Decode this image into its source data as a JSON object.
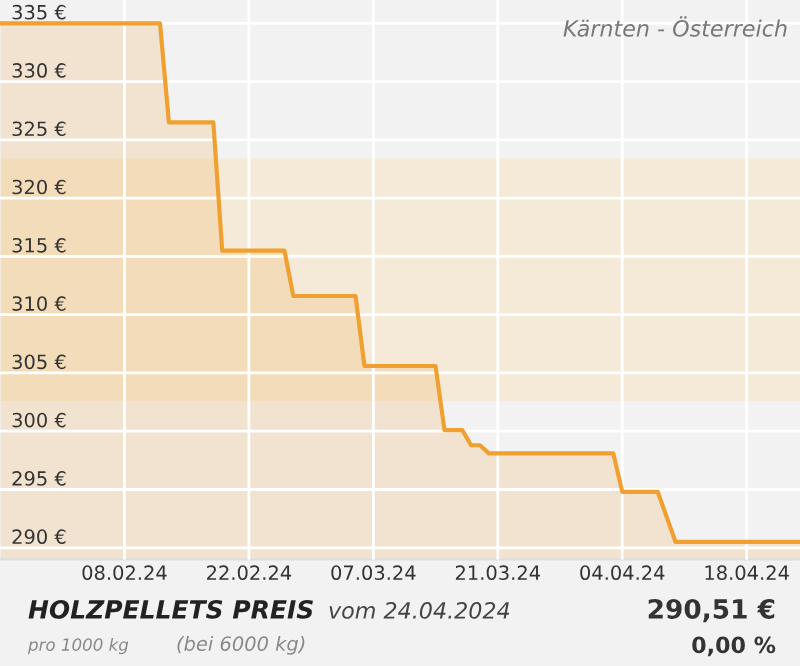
{
  "chart_data": {
    "type": "area",
    "title": "HOLZPELLETS PREIS",
    "subtitle": "vom 24.04.2024",
    "annotations": [
      "Kärnten - Österreich",
      "pro 1000 kg",
      "(bei 6000 kg)",
      "290,51 €",
      "0,00 %"
    ],
    "x": [
      "2024-01-25",
      "2024-02-12",
      "2024-02-13",
      "2024-02-18",
      "2024-02-19",
      "2024-02-26",
      "2024-02-27",
      "2024-03-05",
      "2024-03-06",
      "2024-03-14",
      "2024-03-15",
      "2024-03-17",
      "2024-03-18",
      "2024-03-19",
      "2024-03-20",
      "2024-04-03",
      "2024-04-04",
      "2024-04-08",
      "2024-04-10",
      "2024-04-24"
    ],
    "series": [
      {
        "color": "#f0a030",
        "values": [
          335,
          335,
          326.5,
          326.5,
          315.5,
          315.5,
          311.6,
          311.6,
          305.6,
          305.6,
          300.1,
          300.1,
          298.8,
          298.8,
          298.1,
          298.1,
          294.8,
          294.8,
          290.5,
          290.5
        ]
      }
    ],
    "xlim": [
      "2024-01-25",
      "2024-04-24"
    ],
    "xticks": [
      {
        "value": "2024-02-08",
        "label": "08.02.24"
      },
      {
        "value": "2024-02-22",
        "label": "22.02.24"
      },
      {
        "value": "2024-03-07",
        "label": "07.03.24"
      },
      {
        "value": "2024-03-21",
        "label": "21.03.24"
      },
      {
        "value": "2024-04-04",
        "label": "04.04.24"
      },
      {
        "value": "2024-04-18",
        "label": "18.04.24"
      }
    ],
    "ylim": [
      289,
      337
    ],
    "yticks": [
      {
        "value": 290,
        "label": "290 €"
      },
      {
        "value": 295,
        "label": "295 €"
      },
      {
        "value": 300,
        "label": "300 €"
      },
      {
        "value": 305,
        "label": "305 €"
      },
      {
        "value": 310,
        "label": "310 €"
      },
      {
        "value": 315,
        "label": "315 €"
      },
      {
        "value": 320,
        "label": "320 €"
      },
      {
        "value": 325,
        "label": "325 €"
      },
      {
        "value": 330,
        "label": "330 €"
      },
      {
        "value": 335,
        "label": "335 €"
      }
    ],
    "bands": [
      {
        "axis": "y",
        "from": 302.6,
        "to": 323.4,
        "color": "#f5ead8"
      }
    ],
    "grid": true,
    "legend": false,
    "marker": "none",
    "line_style": "solid"
  }
}
